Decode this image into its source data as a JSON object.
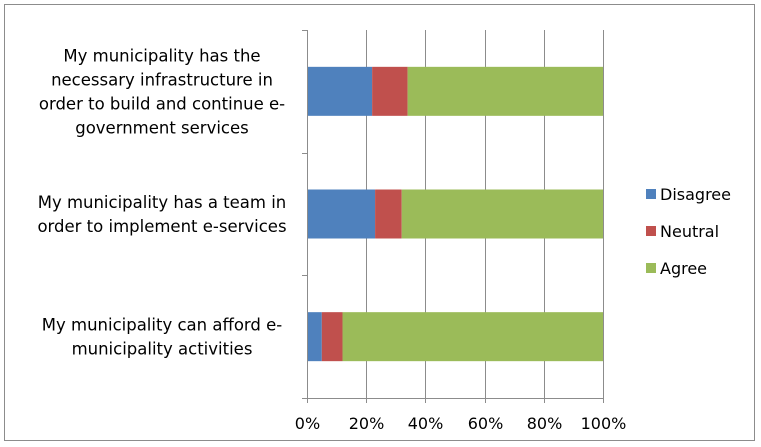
{
  "chart_data": {
    "type": "bar",
    "orientation": "horizontal",
    "stacked": "percent",
    "categories": [
      "My municipality has the necessary infrastructure in order to build and continue e-government services",
      "My municipality has a team in order to implement e-services",
      "My municipality can afford e-municipality activities"
    ],
    "category_lines": [
      [
        "My municipality has the",
        "necessary infrastructure in",
        "order to build and continue e-",
        "government services"
      ],
      [
        "My municipality has a team in",
        "order to implement e-services"
      ],
      [
        "My municipality can afford e-",
        "municipality activities"
      ]
    ],
    "series": [
      {
        "name": "Disagree",
        "color": "#4f81bd",
        "values": [
          22,
          23,
          5
        ]
      },
      {
        "name": "Neutral",
        "color": "#c0504d",
        "values": [
          12,
          9,
          7
        ]
      },
      {
        "name": "Agree",
        "color": "#9bbb59",
        "values": [
          66,
          68,
          88
        ]
      }
    ],
    "x_ticks": [
      "0%",
      "20%",
      "40%",
      "60%",
      "80%",
      "100%"
    ],
    "xlim": [
      0,
      100
    ],
    "xlabel": "",
    "ylabel": "",
    "title": "",
    "grid": true,
    "legend_position": "right"
  }
}
